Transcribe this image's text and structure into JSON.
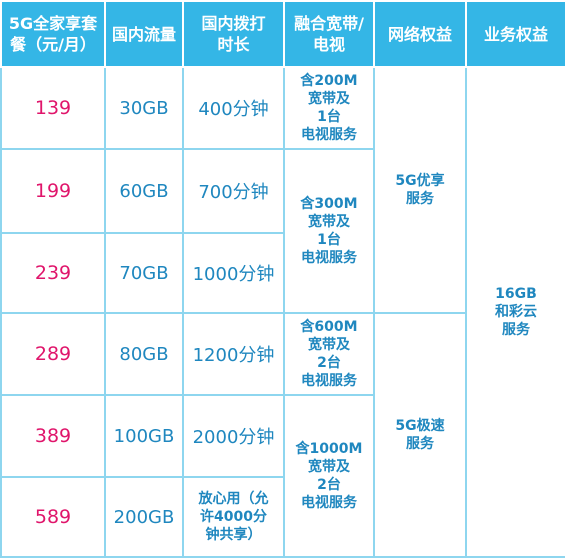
{
  "headers": [
    "5G全家享套\n餐（元/月）",
    "国内流量",
    "国内拨打\n时长",
    "融合宽带/\n电视",
    "网络权益",
    "业务权益"
  ],
  "rows": [
    {
      "price": "139",
      "data": "30GB",
      "minutes": "400分钟"
    },
    {
      "price": "199",
      "data": "60GB",
      "minutes": "700分钟"
    },
    {
      "price": "239",
      "data": "70GB",
      "minutes": "1000分钟"
    },
    {
      "price": "289",
      "data": "80GB",
      "minutes": "1200分钟"
    },
    {
      "price": "389",
      "data": "100GB",
      "minutes": "2000分钟"
    },
    {
      "price": "589",
      "data": "200GB",
      "minutes": "放心用（允\n许4000分\n钟共享）"
    }
  ],
  "broadband": [
    "含200M\n宽带及\n1台\n电视服务",
    "含300M\n宽带及\n1台\n电视服务",
    "含600M\n宽带及\n2台\n电视服务",
    "含1000M\n宽带及\n2台\n电视服务"
  ],
  "network_rights": [
    "5G优享\n服务",
    "5G极速\n服务"
  ],
  "business_rights": "16GB\n和彩云\n服务",
  "colors": {
    "header_bg": "#34b6e6",
    "price_text": "#e0156b",
    "body_text": "#1f87bf",
    "border": "#8ed6ef"
  }
}
